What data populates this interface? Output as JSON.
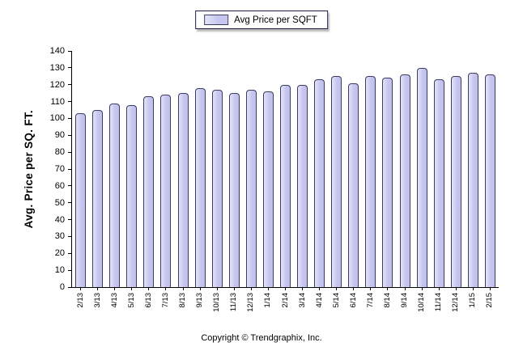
{
  "legend": {
    "label": "Avg Price per SQFT"
  },
  "y_axis": {
    "title": "Avg. Price per SQ. FT."
  },
  "footer": {
    "copyright": "Copyright © Trendgraphix, Inc."
  },
  "chart_data": {
    "type": "bar",
    "title": "",
    "xlabel": "",
    "ylabel": "Avg. Price per SQ. FT.",
    "legend_entries": [
      "Avg Price per SQFT"
    ],
    "legend_position": "top-center",
    "grid": false,
    "ylim": [
      0,
      140
    ],
    "ytick_step": 10,
    "categories": [
      "2/13",
      "3/13",
      "4/13",
      "5/13",
      "6/13",
      "7/13",
      "8/13",
      "9/13",
      "10/13",
      "11/13",
      "12/13",
      "1/14",
      "2/14",
      "3/14",
      "4/14",
      "5/14",
      "6/14",
      "7/14",
      "8/14",
      "9/14",
      "10/14",
      "11/14",
      "12/14",
      "1/15",
      "2/15"
    ],
    "values": [
      103,
      105,
      109,
      108,
      113,
      114,
      115,
      118,
      117,
      115,
      117,
      116,
      120,
      120,
      123,
      125,
      121,
      125,
      124,
      126,
      130,
      123,
      125,
      127,
      126
    ],
    "colors": {
      "bar_fill": "#c6c6ef",
      "bar_fill_light": "#e4e4f8",
      "bar_border": "#3b3b63",
      "axis": "#000000",
      "legend_border": "#1f1f4e",
      "background": "#ffffff"
    }
  }
}
